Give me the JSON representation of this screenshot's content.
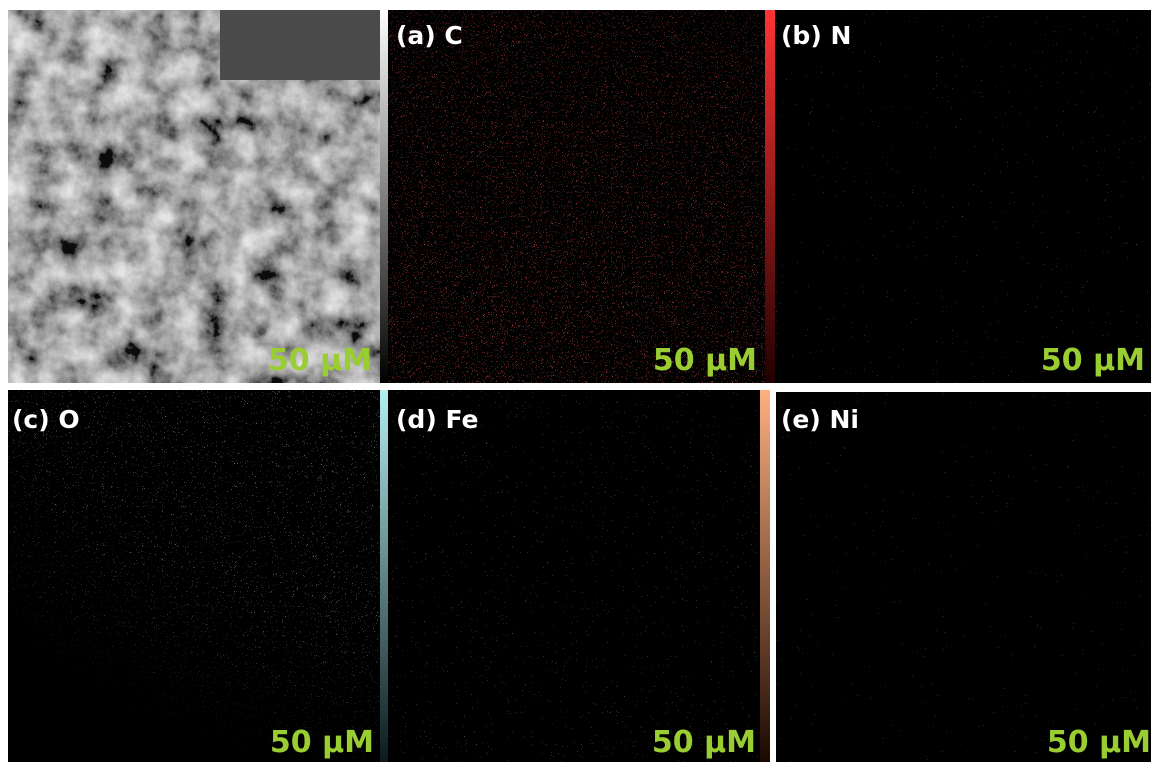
{
  "panels": [
    {
      "scale_bar": "50 μM"
    },
    {
      "label": "(a) C",
      "scale_bar": "50 μM"
    },
    {
      "label": "(b) N",
      "scale_bar": "50 μM"
    },
    {
      "label": "(c) O",
      "scale_bar": "50 μM"
    },
    {
      "label": "(d) Fe",
      "scale_bar": "50 μM"
    },
    {
      "label": "(e) Ni",
      "scale_bar": "50 μM"
    }
  ]
}
